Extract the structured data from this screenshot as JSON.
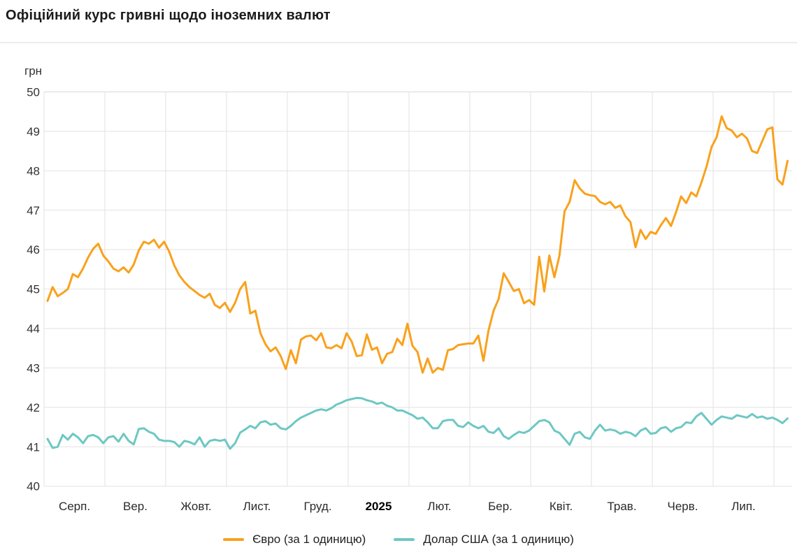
{
  "header": {
    "title": "Офіційний курс гривні щодо іноземних валют"
  },
  "chart_data": {
    "type": "line",
    "title": "Офіційний курс гривні щодо іноземних валют",
    "ylabel": "грн",
    "ylim": [
      40,
      50
    ],
    "yticks": [
      50,
      49,
      48,
      47,
      46,
      45,
      44,
      43,
      42,
      41,
      40
    ],
    "x_month_labels": [
      "Серп.",
      "Вер.",
      "Жовт.",
      "Лист.",
      "Груд.",
      "2025",
      "Лют.",
      "Бер.",
      "Квіт.",
      "Трав.",
      "Черв.",
      "Лип."
    ],
    "bold_x_label": "2025",
    "grid": true,
    "legend_position": "bottom",
    "series": [
      {
        "name": "Євро (за 1 одиницю)",
        "color": "#F9A11C",
        "values": [
          44.7,
          45.05,
          44.82,
          44.9,
          45.0,
          45.38,
          45.3,
          45.52,
          45.8,
          46.02,
          46.15,
          45.85,
          45.7,
          45.52,
          45.45,
          45.55,
          45.42,
          45.62,
          45.98,
          46.2,
          46.15,
          46.25,
          46.05,
          46.2,
          45.95,
          45.6,
          45.35,
          45.18,
          45.05,
          44.95,
          44.85,
          44.78,
          44.88,
          44.6,
          44.52,
          44.65,
          44.42,
          44.65,
          45.0,
          45.18,
          44.38,
          44.45,
          43.88,
          43.6,
          43.42,
          43.52,
          43.3,
          42.97,
          43.45,
          43.12,
          43.72,
          43.8,
          43.82,
          43.7,
          43.88,
          43.52,
          43.5,
          43.58,
          43.5,
          43.88,
          43.67,
          43.3,
          43.32,
          43.85,
          43.46,
          43.52,
          43.12,
          43.36,
          43.4,
          43.74,
          43.58,
          44.12,
          43.56,
          43.4,
          42.88,
          43.24,
          42.88,
          43.0,
          42.95,
          43.45,
          43.48,
          43.58,
          43.6,
          43.62,
          43.62,
          43.82,
          43.18,
          43.95,
          44.45,
          44.75,
          45.4,
          45.18,
          44.95,
          45.0,
          44.64,
          44.72,
          44.6,
          45.82,
          44.94,
          45.85,
          45.3,
          45.85,
          46.97,
          47.21,
          47.76,
          47.55,
          47.42,
          47.38,
          47.36,
          47.21,
          47.15,
          47.21,
          47.06,
          47.12,
          46.85,
          46.7,
          46.06,
          46.5,
          46.27,
          46.45,
          46.4,
          46.62,
          46.8,
          46.6,
          46.95,
          47.35,
          47.18,
          47.45,
          47.35,
          47.7,
          48.1,
          48.6,
          48.85,
          49.38,
          49.08,
          49.02,
          48.85,
          48.94,
          48.82,
          48.5,
          48.45,
          48.75,
          49.05,
          49.1,
          47.78,
          47.65,
          48.25
        ]
      },
      {
        "name": "Долар США (за 1 одиницю)",
        "color": "#6DC8C3",
        "values": [
          41.2,
          40.97,
          41.0,
          41.3,
          41.18,
          41.33,
          41.24,
          41.09,
          41.27,
          41.3,
          41.24,
          41.09,
          41.24,
          41.27,
          41.13,
          41.33,
          41.15,
          41.06,
          41.45,
          41.47,
          41.38,
          41.33,
          41.18,
          41.15,
          41.15,
          41.12,
          41.0,
          41.15,
          41.12,
          41.06,
          41.24,
          41.0,
          41.15,
          41.18,
          41.15,
          41.18,
          40.95,
          41.09,
          41.36,
          41.44,
          41.53,
          41.47,
          41.62,
          41.65,
          41.56,
          41.59,
          41.47,
          41.44,
          41.53,
          41.65,
          41.74,
          41.8,
          41.86,
          41.92,
          41.95,
          41.92,
          41.98,
          42.07,
          42.12,
          42.18,
          42.21,
          42.24,
          42.23,
          42.18,
          42.15,
          42.09,
          42.12,
          42.04,
          42.0,
          41.92,
          41.92,
          41.86,
          41.8,
          41.71,
          41.74,
          41.62,
          41.47,
          41.47,
          41.65,
          41.68,
          41.68,
          41.53,
          41.5,
          41.62,
          41.53,
          41.47,
          41.53,
          41.38,
          41.35,
          41.47,
          41.27,
          41.2,
          41.3,
          41.38,
          41.35,
          41.41,
          41.53,
          41.65,
          41.68,
          41.62,
          41.41,
          41.35,
          41.2,
          41.05,
          41.33,
          41.38,
          41.24,
          41.2,
          41.41,
          41.56,
          41.41,
          41.44,
          41.41,
          41.33,
          41.38,
          41.35,
          41.27,
          41.41,
          41.47,
          41.33,
          41.35,
          41.47,
          41.5,
          41.38,
          41.47,
          41.5,
          41.62,
          41.6,
          41.77,
          41.86,
          41.71,
          41.56,
          41.68,
          41.77,
          41.74,
          41.71,
          41.8,
          41.77,
          41.74,
          41.83,
          41.74,
          41.77,
          41.71,
          41.74,
          41.68,
          41.6,
          41.72
        ]
      }
    ]
  }
}
